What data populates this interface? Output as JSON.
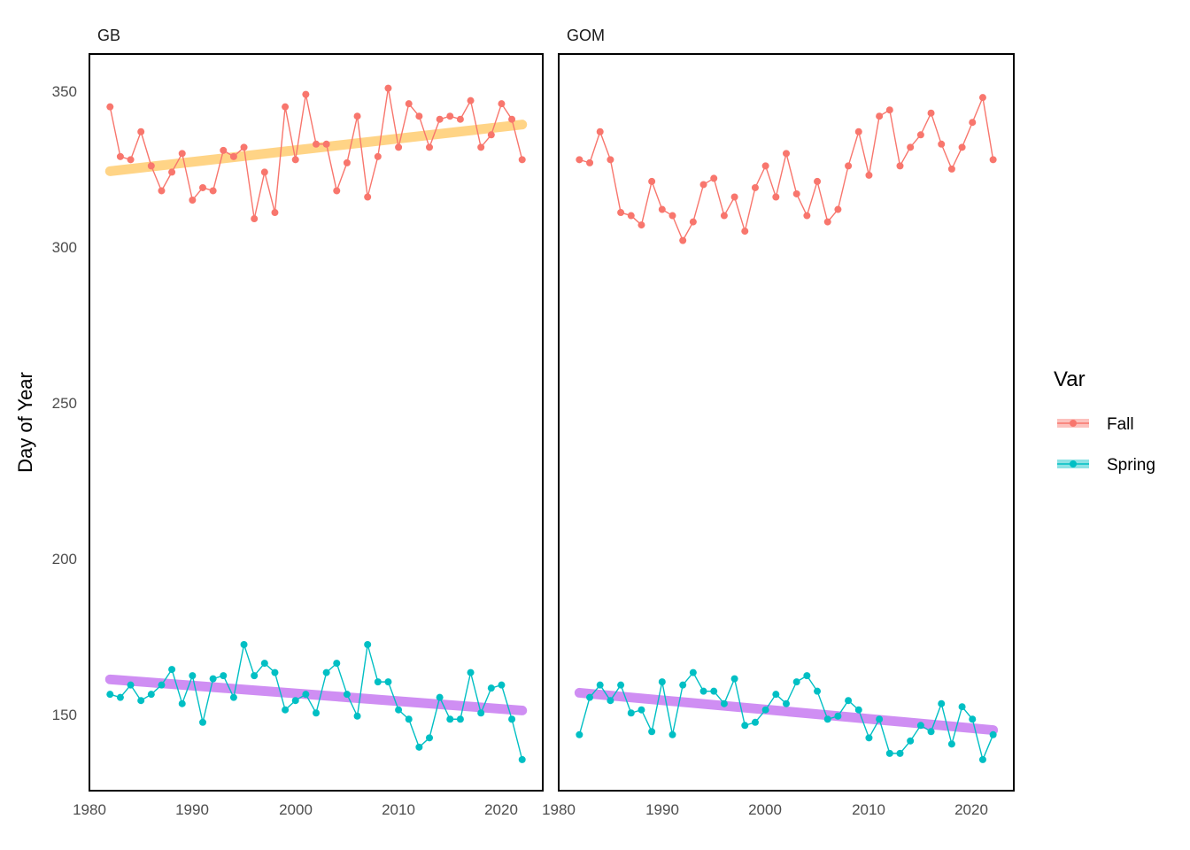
{
  "colors": {
    "fall": "#F8766D",
    "spring": "#00BFC4",
    "fall_trend": "#FFD27F",
    "spring_trend": "#CC88F2"
  },
  "chart_data": {
    "type": "line",
    "ylabel": "Day of Year",
    "xlabel": "",
    "xlim": [
      1980,
      2024
    ],
    "ylim": [
      125,
      362
    ],
    "x_ticks": [
      "1980",
      "1990",
      "2000",
      "2010",
      "2020"
    ],
    "y_ticks": [
      "150",
      "200",
      "250",
      "300",
      "350"
    ],
    "legend": {
      "title": "Var",
      "position": "right",
      "entries": [
        "Fall",
        "Spring"
      ]
    },
    "facets": [
      {
        "label": "GB",
        "series": [
          {
            "name": "Fall",
            "x": [
              1982,
              1983,
              1984,
              1985,
              1986,
              1987,
              1988,
              1989,
              1990,
              1991,
              1992,
              1993,
              1994,
              1995,
              1996,
              1997,
              1998,
              1999,
              2000,
              2001,
              2002,
              2003,
              2004,
              2005,
              2006,
              2007,
              2008,
              2009,
              2010,
              2011,
              2012,
              2013,
              2014,
              2015,
              2016,
              2017,
              2018,
              2019,
              2020,
              2021,
              2022
            ],
            "values": [
              345,
              329,
              328,
              337,
              326,
              318,
              324,
              330,
              315,
              319,
              318,
              331,
              329,
              332,
              309,
              324,
              311,
              345,
              328,
              349,
              333,
              333,
              318,
              327,
              342,
              316,
              329,
              351,
              332,
              346,
              342,
              332,
              341,
              342,
              341,
              347,
              332,
              336,
              346,
              341,
              328
            ]
          },
          {
            "name": "Spring",
            "x": [
              1982,
              1983,
              1984,
              1985,
              1986,
              1987,
              1988,
              1989,
              1990,
              1991,
              1992,
              1993,
              1994,
              1995,
              1996,
              1997,
              1998,
              1999,
              2000,
              2001,
              2002,
              2003,
              2004,
              2005,
              2006,
              2007,
              2008,
              2009,
              2010,
              2011,
              2012,
              2013,
              2014,
              2015,
              2016,
              2017,
              2018,
              2019,
              2020,
              2021,
              2022
            ],
            "values": [
              156,
              155,
              159,
              154,
              156,
              159,
              164,
              153,
              162,
              147,
              161,
              162,
              155,
              172,
              162,
              166,
              163,
              151,
              154,
              156,
              150,
              163,
              166,
              156,
              149,
              172,
              160,
              160,
              151,
              148,
              139,
              142,
              155,
              148,
              148,
              163,
              150,
              158,
              159,
              148,
              135
            ]
          }
        ],
        "trends": [
          {
            "series": "Fall",
            "x": [
              1982,
              2022
            ],
            "values": [
              324.3,
              339.3
            ]
          },
          {
            "series": "Spring",
            "x": [
              1982,
              2022
            ],
            "values": [
              160.8,
              150.8
            ]
          }
        ]
      },
      {
        "label": "GOM",
        "series": [
          {
            "name": "Fall",
            "x": [
              1982,
              1983,
              1984,
              1985,
              1986,
              1987,
              1988,
              1989,
              1990,
              1991,
              1992,
              1993,
              1994,
              1995,
              1996,
              1997,
              1998,
              1999,
              2000,
              2001,
              2002,
              2003,
              2004,
              2005,
              2006,
              2007,
              2008,
              2009,
              2010,
              2011,
              2012,
              2013,
              2014,
              2015,
              2016,
              2017,
              2018,
              2019,
              2020,
              2021,
              2022
            ],
            "values": [
              328,
              327,
              337,
              328,
              311,
              310,
              307,
              321,
              312,
              310,
              302,
              308,
              320,
              322,
              310,
              316,
              305,
              319,
              326,
              316,
              330,
              317,
              310,
              321,
              308,
              312,
              326,
              337,
              323,
              342,
              344,
              326,
              332,
              336,
              343,
              333,
              325,
              332,
              340,
              348,
              328
            ]
          },
          {
            "name": "Spring",
            "x": [
              1982,
              1983,
              1984,
              1985,
              1986,
              1987,
              1988,
              1989,
              1990,
              1991,
              1992,
              1993,
              1994,
              1995,
              1996,
              1997,
              1998,
              1999,
              2000,
              2001,
              2002,
              2003,
              2004,
              2005,
              2006,
              2007,
              2008,
              2009,
              2010,
              2011,
              2012,
              2013,
              2014,
              2015,
              2016,
              2017,
              2018,
              2019,
              2020,
              2021,
              2022
            ],
            "values": [
              143,
              155,
              159,
              154,
              159,
              150,
              151,
              144,
              160,
              143,
              159,
              163,
              157,
              157,
              153,
              161,
              146,
              147,
              151,
              156,
              153,
              160,
              162,
              157,
              148,
              149,
              154,
              151,
              142,
              148,
              137,
              137,
              141,
              146,
              144,
              153,
              140,
              152,
              148,
              135,
              143
            ]
          }
        ],
        "trends": [
          {
            "series": "Spring",
            "x": [
              1982,
              2022
            ],
            "values": [
              156.5,
              144.5
            ]
          }
        ]
      }
    ]
  }
}
